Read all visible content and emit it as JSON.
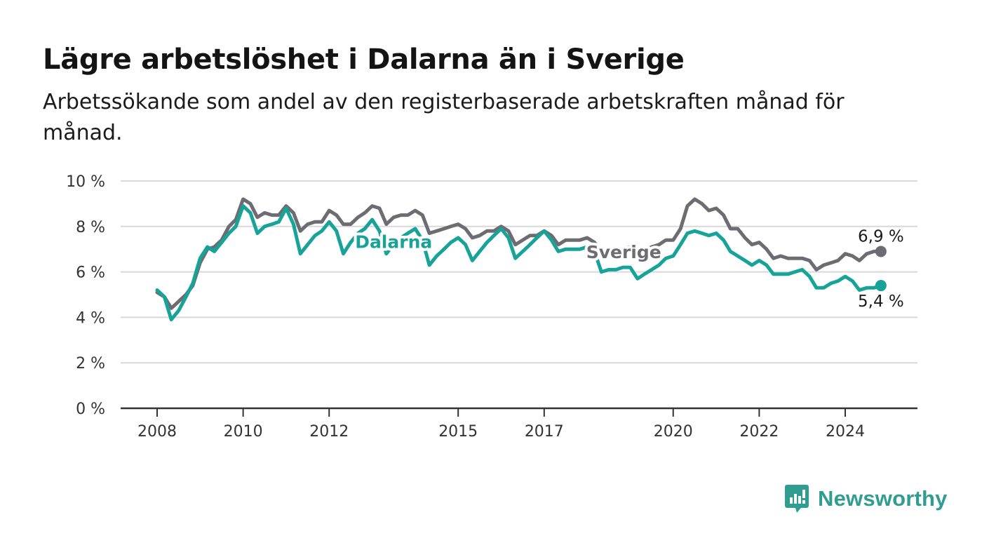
{
  "header": {
    "title": "Lägre arbetslöshet i Dalarna än i Sverige",
    "subtitle": "Arbetssökande som andel av den registerbaserade arbetskraften månad för månad."
  },
  "brand": {
    "name": "Newsworthy",
    "icon": "newsworthy-logo-icon",
    "color": "#2f9e91"
  },
  "colors": {
    "dalarna": "#17a398",
    "sverige": "#6e6c73",
    "grid": "#d9d9d9",
    "axis": "#333333"
  },
  "chart_data": {
    "type": "line",
    "title": "Lägre arbetslöshet i Dalarna än i Sverige",
    "xlabel": "",
    "ylabel": "",
    "ylim": [
      0,
      10
    ],
    "yticks": [
      0,
      2,
      4,
      6,
      8,
      10
    ],
    "ytick_labels": [
      "0 %",
      "2 %",
      "4 %",
      "6 %",
      "8 %",
      "10 %"
    ],
    "xticks": [
      2008,
      2010,
      2012,
      2015,
      2017,
      2020,
      2022,
      2024
    ],
    "xtick_labels": [
      "2008",
      "2010",
      "2012",
      "2015",
      "2017",
      "2020",
      "2022",
      "2024"
    ],
    "grid": true,
    "legend": "inline labels",
    "series": [
      {
        "name": "Sverige",
        "color": "#6e6c73",
        "end_label": "6,9 %",
        "points": [
          [
            2008.0,
            5.1
          ],
          [
            2008.17,
            4.9
          ],
          [
            2008.33,
            4.4
          ],
          [
            2008.5,
            4.7
          ],
          [
            2008.67,
            5.0
          ],
          [
            2008.83,
            5.4
          ],
          [
            2009.0,
            6.4
          ],
          [
            2009.17,
            7.0
          ],
          [
            2009.33,
            7.1
          ],
          [
            2009.5,
            7.4
          ],
          [
            2009.67,
            8.0
          ],
          [
            2009.83,
            8.3
          ],
          [
            2010.0,
            9.2
          ],
          [
            2010.17,
            9.0
          ],
          [
            2010.33,
            8.4
          ],
          [
            2010.5,
            8.6
          ],
          [
            2010.67,
            8.5
          ],
          [
            2010.83,
            8.5
          ],
          [
            2011.0,
            8.9
          ],
          [
            2011.17,
            8.6
          ],
          [
            2011.33,
            7.8
          ],
          [
            2011.5,
            8.1
          ],
          [
            2011.67,
            8.2
          ],
          [
            2011.83,
            8.2
          ],
          [
            2012.0,
            8.7
          ],
          [
            2012.17,
            8.5
          ],
          [
            2012.33,
            8.1
          ],
          [
            2012.5,
            8.1
          ],
          [
            2012.67,
            8.4
          ],
          [
            2012.83,
            8.6
          ],
          [
            2013.0,
            8.9
          ],
          [
            2013.17,
            8.8
          ],
          [
            2013.33,
            8.1
          ],
          [
            2013.5,
            8.4
          ],
          [
            2013.67,
            8.5
          ],
          [
            2013.83,
            8.5
          ],
          [
            2014.0,
            8.7
          ],
          [
            2014.17,
            8.5
          ],
          [
            2014.33,
            7.7
          ],
          [
            2014.5,
            7.8
          ],
          [
            2014.67,
            7.9
          ],
          [
            2014.83,
            8.0
          ],
          [
            2015.0,
            8.1
          ],
          [
            2015.17,
            7.9
          ],
          [
            2015.33,
            7.5
          ],
          [
            2015.5,
            7.6
          ],
          [
            2015.67,
            7.8
          ],
          [
            2015.83,
            7.8
          ],
          [
            2016.0,
            8.0
          ],
          [
            2016.17,
            7.8
          ],
          [
            2016.33,
            7.2
          ],
          [
            2016.5,
            7.4
          ],
          [
            2016.67,
            7.6
          ],
          [
            2016.83,
            7.6
          ],
          [
            2017.0,
            7.8
          ],
          [
            2017.17,
            7.6
          ],
          [
            2017.33,
            7.2
          ],
          [
            2017.5,
            7.4
          ],
          [
            2017.67,
            7.4
          ],
          [
            2017.83,
            7.4
          ],
          [
            2018.0,
            7.5
          ],
          [
            2018.17,
            7.3
          ],
          [
            2018.33,
            6.9
          ],
          [
            2018.5,
            7.0
          ],
          [
            2018.67,
            7.0
          ],
          [
            2018.83,
            7.0
          ],
          [
            2019.0,
            7.1
          ],
          [
            2019.17,
            7.0
          ],
          [
            2019.33,
            6.9
          ],
          [
            2019.5,
            7.1
          ],
          [
            2019.67,
            7.2
          ],
          [
            2019.83,
            7.4
          ],
          [
            2020.0,
            7.4
          ],
          [
            2020.17,
            7.9
          ],
          [
            2020.33,
            8.9
          ],
          [
            2020.5,
            9.2
          ],
          [
            2020.67,
            9.0
          ],
          [
            2020.83,
            8.7
          ],
          [
            2021.0,
            8.8
          ],
          [
            2021.17,
            8.5
          ],
          [
            2021.33,
            7.9
          ],
          [
            2021.5,
            7.9
          ],
          [
            2021.67,
            7.5
          ],
          [
            2021.83,
            7.2
          ],
          [
            2022.0,
            7.3
          ],
          [
            2022.17,
            7.0
          ],
          [
            2022.33,
            6.6
          ],
          [
            2022.5,
            6.7
          ],
          [
            2022.67,
            6.6
          ],
          [
            2022.83,
            6.6
          ],
          [
            2023.0,
            6.6
          ],
          [
            2023.17,
            6.5
          ],
          [
            2023.33,
            6.1
          ],
          [
            2023.5,
            6.3
          ],
          [
            2023.67,
            6.4
          ],
          [
            2023.83,
            6.5
          ],
          [
            2024.0,
            6.8
          ],
          [
            2024.17,
            6.7
          ],
          [
            2024.33,
            6.5
          ],
          [
            2024.5,
            6.8
          ],
          [
            2024.67,
            6.9
          ],
          [
            2024.83,
            6.9
          ]
        ]
      },
      {
        "name": "Dalarna",
        "color": "#17a398",
        "end_label": "5,4 %",
        "points": [
          [
            2008.0,
            5.2
          ],
          [
            2008.17,
            4.9
          ],
          [
            2008.33,
            3.9
          ],
          [
            2008.5,
            4.3
          ],
          [
            2008.67,
            4.9
          ],
          [
            2008.83,
            5.5
          ],
          [
            2009.0,
            6.6
          ],
          [
            2009.17,
            7.1
          ],
          [
            2009.33,
            6.9
          ],
          [
            2009.5,
            7.3
          ],
          [
            2009.67,
            7.7
          ],
          [
            2009.83,
            8.0
          ],
          [
            2010.0,
            8.9
          ],
          [
            2010.17,
            8.6
          ],
          [
            2010.33,
            7.7
          ],
          [
            2010.5,
            8.0
          ],
          [
            2010.67,
            8.1
          ],
          [
            2010.83,
            8.2
          ],
          [
            2011.0,
            8.8
          ],
          [
            2011.17,
            8.1
          ],
          [
            2011.33,
            6.8
          ],
          [
            2011.5,
            7.2
          ],
          [
            2011.67,
            7.6
          ],
          [
            2011.83,
            7.8
          ],
          [
            2012.0,
            8.2
          ],
          [
            2012.17,
            7.8
          ],
          [
            2012.33,
            6.8
          ],
          [
            2012.5,
            7.3
          ],
          [
            2012.67,
            7.7
          ],
          [
            2012.83,
            7.9
          ],
          [
            2013.0,
            8.3
          ],
          [
            2013.17,
            7.8
          ],
          [
            2013.33,
            6.8
          ],
          [
            2013.5,
            7.2
          ],
          [
            2013.67,
            7.5
          ],
          [
            2013.83,
            7.7
          ],
          [
            2014.0,
            7.9
          ],
          [
            2014.17,
            7.4
          ],
          [
            2014.33,
            6.3
          ],
          [
            2014.5,
            6.7
          ],
          [
            2014.67,
            7.0
          ],
          [
            2014.83,
            7.3
          ],
          [
            2015.0,
            7.5
          ],
          [
            2015.17,
            7.2
          ],
          [
            2015.33,
            6.5
          ],
          [
            2015.5,
            6.9
          ],
          [
            2015.67,
            7.3
          ],
          [
            2015.83,
            7.6
          ],
          [
            2016.0,
            7.9
          ],
          [
            2016.17,
            7.5
          ],
          [
            2016.33,
            6.6
          ],
          [
            2016.5,
            6.9
          ],
          [
            2016.67,
            7.2
          ],
          [
            2016.83,
            7.5
          ],
          [
            2017.0,
            7.8
          ],
          [
            2017.17,
            7.4
          ],
          [
            2017.33,
            6.9
          ],
          [
            2017.5,
            7.0
          ],
          [
            2017.67,
            7.0
          ],
          [
            2017.83,
            7.0
          ],
          [
            2018.0,
            7.1
          ],
          [
            2018.17,
            6.9
          ],
          [
            2018.33,
            6.0
          ],
          [
            2018.5,
            6.1
          ],
          [
            2018.67,
            6.1
          ],
          [
            2018.83,
            6.2
          ],
          [
            2019.0,
            6.2
          ],
          [
            2019.17,
            5.7
          ],
          [
            2019.33,
            5.9
          ],
          [
            2019.5,
            6.1
          ],
          [
            2019.67,
            6.3
          ],
          [
            2019.83,
            6.6
          ],
          [
            2020.0,
            6.7
          ],
          [
            2020.17,
            7.2
          ],
          [
            2020.33,
            7.7
          ],
          [
            2020.5,
            7.8
          ],
          [
            2020.67,
            7.7
          ],
          [
            2020.83,
            7.6
          ],
          [
            2021.0,
            7.7
          ],
          [
            2021.17,
            7.4
          ],
          [
            2021.33,
            6.9
          ],
          [
            2021.5,
            6.7
          ],
          [
            2021.67,
            6.5
          ],
          [
            2021.83,
            6.3
          ],
          [
            2022.0,
            6.5
          ],
          [
            2022.17,
            6.3
          ],
          [
            2022.33,
            5.9
          ],
          [
            2022.5,
            5.9
          ],
          [
            2022.67,
            5.9
          ],
          [
            2022.83,
            6.0
          ],
          [
            2023.0,
            6.1
          ],
          [
            2023.17,
            5.8
          ],
          [
            2023.33,
            5.3
          ],
          [
            2023.5,
            5.3
          ],
          [
            2023.67,
            5.5
          ],
          [
            2023.83,
            5.6
          ],
          [
            2024.0,
            5.8
          ],
          [
            2024.17,
            5.6
          ],
          [
            2024.33,
            5.2
          ],
          [
            2024.5,
            5.3
          ],
          [
            2024.67,
            5.3
          ],
          [
            2024.83,
            5.4
          ]
        ]
      }
    ]
  }
}
